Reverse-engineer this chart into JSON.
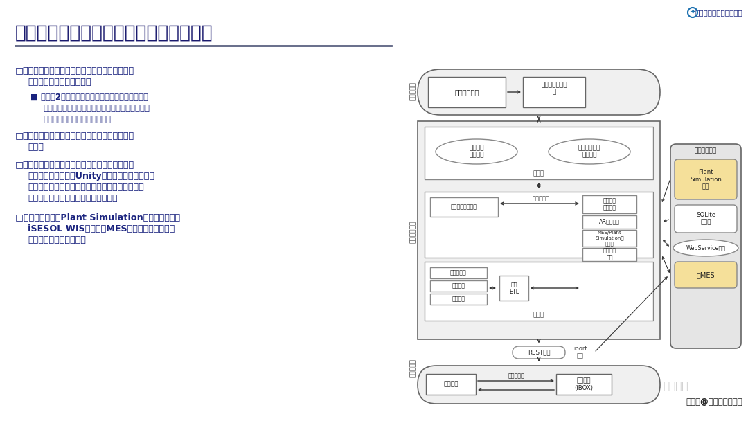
{
  "title": "智能制造单元数字孪生原型系统构建框架",
  "title_color": "#1a1a6e",
  "bg_color": "#ffffff",
  "bullet_color": "#1a237e",
  "top_right_text": "数字孪生技术与工程实践",
  "bottom_right_text": "搜狐号@镁行链盟研究院",
  "watermark_text": "镁行链盟",
  "diagram_gray": "#f0f0f0",
  "yellow_fill": "#f5e09a",
  "box_ec": "#666666",
  "inner_ec": "#888888",
  "text_dark": "#222222",
  "text_mid": "#444444",
  "text_lbl": "#555555",
  "arr_color": "#333333"
}
